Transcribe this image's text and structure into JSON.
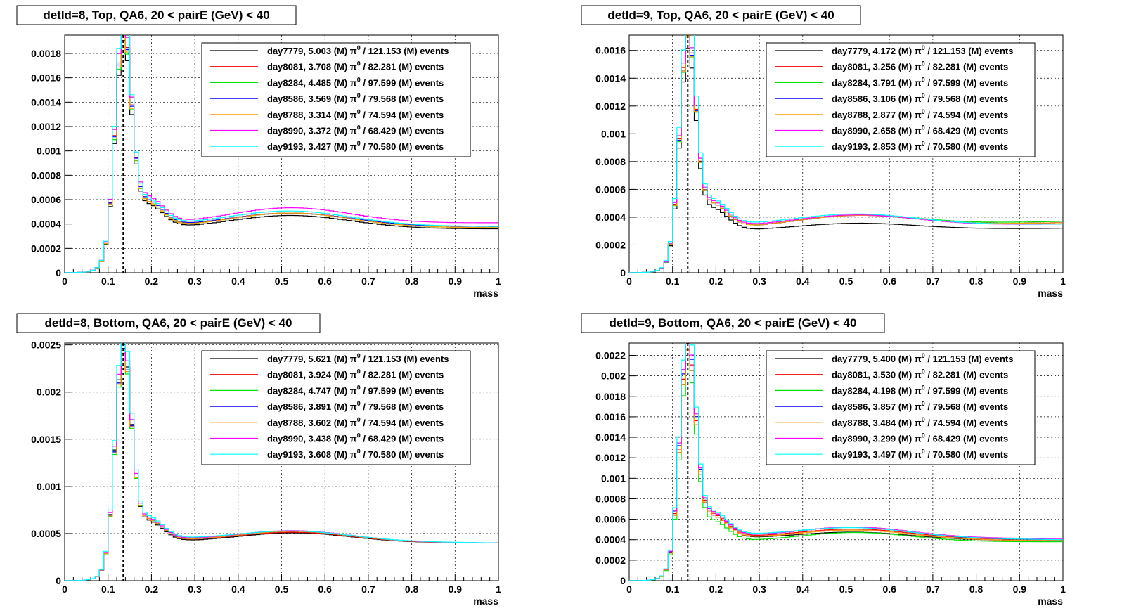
{
  "colors": {
    "series": [
      "#000000",
      "#ff0000",
      "#00e000",
      "#0000ff",
      "#ff9900",
      "#ff00ff",
      "#00ffff"
    ]
  },
  "chart_data": [
    {
      "type": "histogram",
      "title": "detId=8, Top, QA6, 20 < pairE (GeV) < 40",
      "xlabel": "mass",
      "ylabel": "",
      "xlim": [
        0,
        1
      ],
      "ylim": [
        0,
        0.00195
      ],
      "grid": true,
      "reference_line_x": 0.135,
      "legend_position": "top-right",
      "x_ticks": [
        "0",
        "0.1",
        "0.2",
        "0.3",
        "0.4",
        "0.5",
        "0.6",
        "0.7",
        "0.8",
        "0.9",
        "1"
      ],
      "y_ticks": [
        {
          "v": 0,
          "label": "0"
        },
        {
          "v": 0.0002,
          "label": "0.0002"
        },
        {
          "v": 0.0004,
          "label": "0.0004"
        },
        {
          "v": 0.0006,
          "label": "0.0006"
        },
        {
          "v": 0.0008,
          "label": "0.0008"
        },
        {
          "v": 0.001,
          "label": "0.001"
        },
        {
          "v": 0.0012,
          "label": "0.0012"
        },
        {
          "v": 0.0014,
          "label": "0.0014"
        },
        {
          "v": 0.0016,
          "label": "0.0016"
        },
        {
          "v": 0.0018,
          "label": "0.0018"
        }
      ],
      "shape": {
        "peak_x": 0.135,
        "peak_width": 0.018,
        "bg_start": 0.05,
        "bg_width": 0.015,
        "bump_x": 0.52,
        "bump_width": 0.14
      },
      "series": [
        {
          "label": "day7779, 5.003 (M)",
          "pi0": "π",
          "pi0_sup": "0",
          "suffix": "/ 121.153 (M) events",
          "peak": 0.00155,
          "base": 0.00036,
          "bump": 0.00011,
          "tail": 0.00036
        },
        {
          "label": "day8081, 3.708 (M)",
          "pi0": "π",
          "pi0_sup": "0",
          "suffix": "/  82.281 (M) events",
          "peak": 0.00165,
          "base": 0.00038,
          "bump": 0.00011,
          "tail": 0.00038
        },
        {
          "label": "day8284, 4.485 (M)",
          "pi0": "π",
          "pi0_sup": "0",
          "suffix": "/  97.599 (M) events",
          "peak": 0.0016,
          "base": 0.00037,
          "bump": 0.00012,
          "tail": 0.00037
        },
        {
          "label": "day8586, 3.569 (M)",
          "pi0": "π",
          "pi0_sup": "0",
          "suffix": "/  79.568 (M) events",
          "peak": 0.00163,
          "base": 0.00038,
          "bump": 0.00011,
          "tail": 0.00038
        },
        {
          "label": "day8788, 3.314 (M)",
          "pi0": "π",
          "pi0_sup": "0",
          "suffix": "/  74.594 (M) events",
          "peak": 0.00162,
          "base": 0.00037,
          "bump": 0.00012,
          "tail": 0.00037
        },
        {
          "label": "day8990, 3.372 (M)",
          "pi0": "π",
          "pi0_sup": "0",
          "suffix": "/  68.429 (M) events",
          "peak": 0.00172,
          "base": 0.0004,
          "bump": 0.00013,
          "tail": 0.00041
        },
        {
          "label": "day9193, 3.427 (M)",
          "pi0": "π",
          "pi0_sup": "0",
          "suffix": "/  70.580 (M) events",
          "peak": 0.00178,
          "base": 0.00039,
          "bump": 0.00012,
          "tail": 0.00038
        }
      ]
    },
    {
      "type": "histogram",
      "title": "detId=9, Top, QA6, 20 < pairE (GeV) < 40",
      "xlabel": "mass",
      "ylabel": "",
      "xlim": [
        0,
        1
      ],
      "ylim": [
        0,
        0.00171
      ],
      "grid": true,
      "reference_line_x": 0.135,
      "legend_position": "top-right",
      "x_ticks": [
        "0",
        "0.1",
        "0.2",
        "0.3",
        "0.4",
        "0.5",
        "0.6",
        "0.7",
        "0.8",
        "0.9",
        "1"
      ],
      "y_ticks": [
        {
          "v": 0,
          "label": "0"
        },
        {
          "v": 0.0002,
          "label": "0.0002"
        },
        {
          "v": 0.0004,
          "label": "0.0004"
        },
        {
          "v": 0.0006,
          "label": "0.0006"
        },
        {
          "v": 0.0008,
          "label": "0.0008"
        },
        {
          "v": 0.001,
          "label": "0.001"
        },
        {
          "v": 0.0012,
          "label": "0.0012"
        },
        {
          "v": 0.0014,
          "label": "0.0014"
        },
        {
          "v": 0.0016,
          "label": "0.0016"
        }
      ],
      "shape": {
        "peak_x": 0.135,
        "peak_width": 0.018,
        "bg_start": 0.05,
        "bg_width": 0.015,
        "bump_x": 0.52,
        "bump_width": 0.14
      },
      "series": [
        {
          "label": "day7779, 4.172 (M)",
          "pi0": "π",
          "pi0_sup": "0",
          "suffix": "/ 121.153 (M) events",
          "peak": 0.00132,
          "base": 0.0003,
          "bump": 5e-05,
          "tail": 0.00032
        },
        {
          "label": "day8081, 3.256 (M)",
          "pi0": "π",
          "pi0_sup": "0",
          "suffix": "/  82.281 (M) events",
          "peak": 0.00142,
          "base": 0.00032,
          "bump": 8e-05,
          "tail": 0.00036
        },
        {
          "label": "day8284, 3.791 (M)",
          "pi0": "π",
          "pi0_sup": "0",
          "suffix": "/  97.599 (M) events",
          "peak": 0.00138,
          "base": 0.00032,
          "bump": 8e-05,
          "tail": 0.00037
        },
        {
          "label": "day8586, 3.106 (M)",
          "pi0": "π",
          "pi0_sup": "0",
          "suffix": "/  79.568 (M) events",
          "peak": 0.0014,
          "base": 0.00032,
          "bump": 8e-05,
          "tail": 0.00036
        },
        {
          "label": "day8788, 2.877 (M)",
          "pi0": "π",
          "pi0_sup": "0",
          "suffix": "/  74.594 (M) events",
          "peak": 0.00139,
          "base": 0.00032,
          "bump": 8e-05,
          "tail": 0.00036
        },
        {
          "label": "day8990, 2.658 (M)",
          "pi0": "π",
          "pi0_sup": "0",
          "suffix": "/  68.429 (M) events",
          "peak": 0.00145,
          "base": 0.00033,
          "bump": 8e-05,
          "tail": 0.00035
        },
        {
          "label": "day9193, 2.853 (M)",
          "pi0": "π",
          "pi0_sup": "0",
          "suffix": "/  70.580 (M) events",
          "peak": 0.00155,
          "base": 0.00034,
          "bump": 8e-05,
          "tail": 0.00035
        }
      ]
    },
    {
      "type": "histogram",
      "title": "detId=8, Bottom, QA6, 20 < pairE (GeV) < 40",
      "xlabel": "mass",
      "ylabel": "",
      "xlim": [
        0,
        1
      ],
      "ylim": [
        0,
        0.00252
      ],
      "grid": true,
      "reference_line_x": 0.135,
      "legend_position": "top-right",
      "x_ticks": [
        "0",
        "0.1",
        "0.2",
        "0.3",
        "0.4",
        "0.5",
        "0.6",
        "0.7",
        "0.8",
        "0.9",
        "1"
      ],
      "y_ticks": [
        {
          "v": 0,
          "label": "0"
        },
        {
          "v": 0.0005,
          "label": "0.0005"
        },
        {
          "v": 0.001,
          "label": "0.001"
        },
        {
          "v": 0.0015,
          "label": "0.0015"
        },
        {
          "v": 0.002,
          "label": "0.002"
        },
        {
          "v": 0.0025,
          "label": "0.0025"
        }
      ],
      "shape": {
        "peak_x": 0.135,
        "peak_width": 0.018,
        "bg_start": 0.05,
        "bg_width": 0.015,
        "bump_x": 0.53,
        "bump_width": 0.13
      },
      "series": [
        {
          "label": "day7779, 5.621 (M)",
          "pi0": "π",
          "pi0_sup": "0",
          "suffix": "/ 121.153 (M) events",
          "peak": 0.0021,
          "base": 0.00041,
          "bump": 0.0001,
          "tail": 0.0004
        },
        {
          "label": "day8081, 3.924 (M)",
          "pi0": "π",
          "pi0_sup": "0",
          "suffix": "/  82.281 (M) events",
          "peak": 0.00205,
          "base": 0.00042,
          "bump": 0.0001,
          "tail": 0.0004
        },
        {
          "label": "day8284, 4.747 (M)",
          "pi0": "π",
          "pi0_sup": "0",
          "suffix": "/  97.599 (M) events",
          "peak": 0.002,
          "base": 0.00042,
          "bump": 0.00011,
          "tail": 0.0004
        },
        {
          "label": "day8586, 3.891 (M)",
          "pi0": "π",
          "pi0_sup": "0",
          "suffix": "/  79.568 (M) events",
          "peak": 0.00205,
          "base": 0.00042,
          "bump": 0.00011,
          "tail": 0.0004
        },
        {
          "label": "day8788, 3.602 (M)",
          "pi0": "π",
          "pi0_sup": "0",
          "suffix": "/  74.594 (M) events",
          "peak": 0.00203,
          "base": 0.00042,
          "bump": 0.00011,
          "tail": 0.0004
        },
        {
          "label": "day8990, 3.438 (M)",
          "pi0": "π",
          "pi0_sup": "0",
          "suffix": "/  68.429 (M) events",
          "peak": 0.00215,
          "base": 0.00043,
          "bump": 0.00011,
          "tail": 0.0004
        },
        {
          "label": "day9193, 3.608 (M)",
          "pi0": "π",
          "pi0_sup": "0",
          "suffix": "/  70.580 (M) events",
          "peak": 0.00225,
          "base": 0.00044,
          "bump": 0.0001,
          "tail": 0.0004
        }
      ]
    },
    {
      "type": "histogram",
      "title": "detId=9, Bottom, QA6, 20 < pairE (GeV) < 40",
      "xlabel": "mass",
      "ylabel": "",
      "xlim": [
        0,
        1
      ],
      "ylim": [
        0,
        0.00232
      ],
      "grid": true,
      "reference_line_x": 0.135,
      "legend_position": "top-right",
      "x_ticks": [
        "0",
        "0.1",
        "0.2",
        "0.3",
        "0.4",
        "0.5",
        "0.6",
        "0.7",
        "0.8",
        "0.9",
        "1"
      ],
      "y_ticks": [
        {
          "v": 0,
          "label": "0"
        },
        {
          "v": 0.0002,
          "label": "0.0002"
        },
        {
          "v": 0.0004,
          "label": "0.0004"
        },
        {
          "v": 0.0006,
          "label": "0.0006"
        },
        {
          "v": 0.0008,
          "label": "0.0008"
        },
        {
          "v": 0.001,
          "label": "0.001"
        },
        {
          "v": 0.0012,
          "label": "0.0012"
        },
        {
          "v": 0.0014,
          "label": "0.0014"
        },
        {
          "v": 0.0016,
          "label": "0.0016"
        },
        {
          "v": 0.0018,
          "label": "0.0018"
        },
        {
          "v": 0.002,
          "label": "0.002"
        },
        {
          "v": 0.0022,
          "label": "0.0022"
        }
      ],
      "shape": {
        "peak_x": 0.135,
        "peak_width": 0.018,
        "bg_start": 0.05,
        "bg_width": 0.015,
        "bump_x": 0.52,
        "bump_width": 0.13
      },
      "series": [
        {
          "label": "day7779, 5.400 (M)",
          "pi0": "π",
          "pi0_sup": "0",
          "suffix": "/ 121.153 (M) events",
          "peak": 0.00185,
          "base": 0.00041,
          "bump": 7e-05,
          "tail": 0.00039
        },
        {
          "label": "day8081, 3.530 (M)",
          "pi0": "π",
          "pi0_sup": "0",
          "suffix": "/  82.281 (M) events",
          "peak": 0.0019,
          "base": 0.00042,
          "bump": 9e-05,
          "tail": 0.0004
        },
        {
          "label": "day8284, 4.198 (M)",
          "pi0": "π",
          "pi0_sup": "0",
          "suffix": "/  97.599 (M) events",
          "peak": 0.00175,
          "base": 0.00038,
          "bump": 9e-05,
          "tail": 0.00038
        },
        {
          "label": "day8586, 3.857 (M)",
          "pi0": "π",
          "pi0_sup": "0",
          "suffix": "/  79.568 (M) events",
          "peak": 0.00195,
          "base": 0.00043,
          "bump": 0.0001,
          "tail": 0.0004
        },
        {
          "label": "day8788, 3.484 (M)",
          "pi0": "π",
          "pi0_sup": "0",
          "suffix": "/  74.594 (M) events",
          "peak": 0.00185,
          "base": 0.00041,
          "bump": 9e-05,
          "tail": 0.00039
        },
        {
          "label": "day8990, 3.299 (M)",
          "pi0": "π",
          "pi0_sup": "0",
          "suffix": "/  68.429 (M) events",
          "peak": 0.002,
          "base": 0.00043,
          "bump": 0.0001,
          "tail": 0.00041
        },
        {
          "label": "day9193, 3.497 (M)",
          "pi0": "π",
          "pi0_sup": "0",
          "suffix": "/  70.580 (M) events",
          "peak": 0.0021,
          "base": 0.00044,
          "bump": 9e-05,
          "tail": 0.0004
        }
      ]
    }
  ]
}
